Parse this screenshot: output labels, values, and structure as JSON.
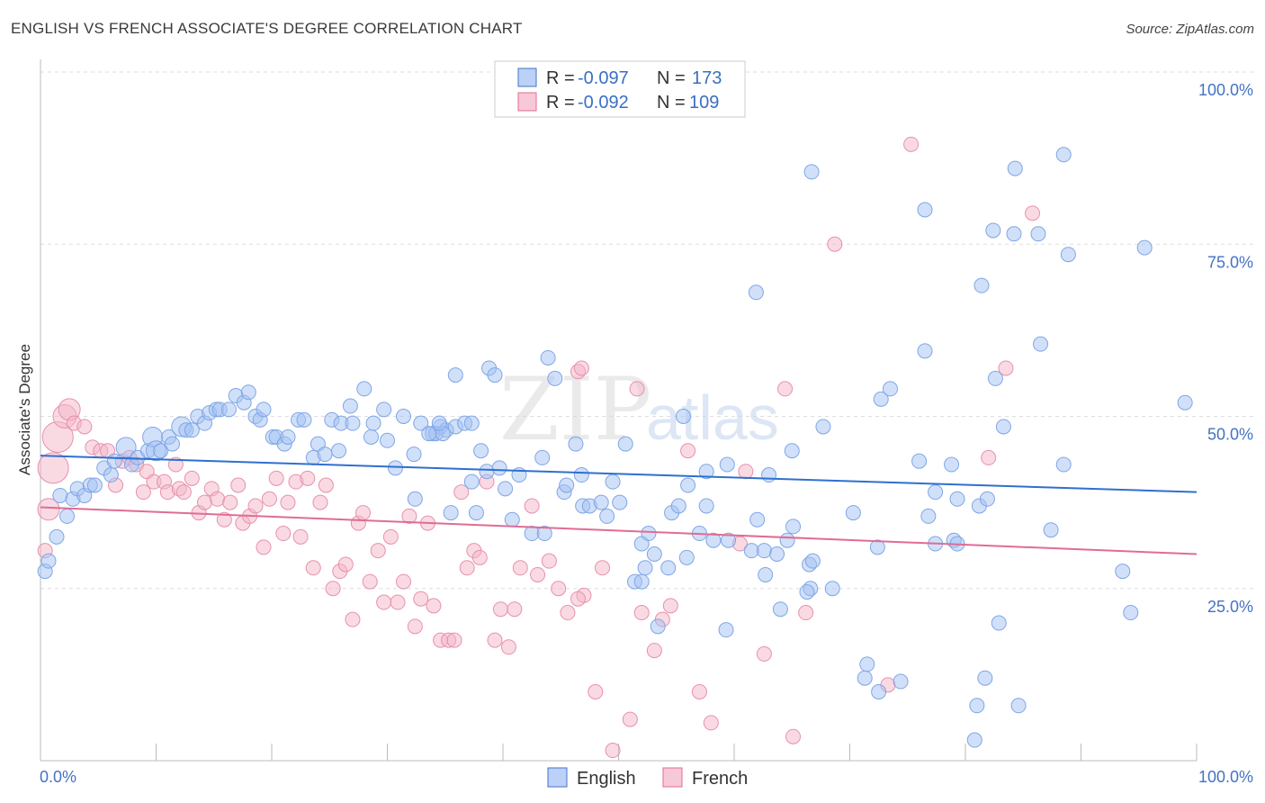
{
  "header": {
    "title": "ENGLISH VS FRENCH ASSOCIATE'S DEGREE CORRELATION CHART",
    "source": "Source: ZipAtlas.com"
  },
  "watermark": {
    "zip": "ZIP",
    "atlas": "atlas"
  },
  "legend_top": {
    "rows": [
      {
        "r_label": "R = ",
        "r_value": "-0.097",
        "n_label": "N = ",
        "n_value": "173"
      },
      {
        "r_label": "R = ",
        "r_value": "-0.092",
        "n_label": "N = ",
        "n_value": "109"
      }
    ]
  },
  "chart_data": {
    "type": "scatter",
    "title": "ENGLISH VS FRENCH ASSOCIATE'S DEGREE CORRELATION CHART",
    "xlabel": "",
    "ylabel": "Associate's Degree",
    "xlim": [
      0,
      100
    ],
    "ylim": [
      0,
      100
    ],
    "x_tick_labels": [
      "0.0%",
      "100.0%"
    ],
    "y_tick_labels": [
      "100.0%",
      "75.0%",
      "50.0%",
      "25.0%"
    ],
    "y_ticks": [
      100,
      75,
      50,
      25
    ],
    "grid": true,
    "legend_position": "bottom",
    "colors": {
      "english": "#a4c2f4",
      "english_line": "#2f6fd0",
      "french": "#f4b6c8",
      "french_line": "#e06c94"
    },
    "series": [
      {
        "name": "English",
        "r": -0.097,
        "n": 173,
        "trend": {
          "x": [
            0,
            100
          ],
          "y": [
            44.3,
            39.0
          ]
        },
        "points": [
          [
            0.4,
            27.5
          ],
          [
            0.7,
            29
          ],
          [
            1.4,
            32.5
          ],
          [
            1.7,
            38.5
          ],
          [
            2.3,
            35.5
          ],
          [
            2.8,
            38
          ],
          [
            3.2,
            39.5
          ],
          [
            3.8,
            38.5
          ],
          [
            4.3,
            40
          ],
          [
            4.7,
            40
          ],
          [
            5.5,
            42.5
          ],
          [
            6.1,
            41.5
          ],
          [
            6.4,
            43.5
          ],
          [
            7.4,
            45.5
          ],
          [
            7.9,
            43
          ],
          [
            8.4,
            44
          ],
          [
            9.3,
            45
          ],
          [
            9.7,
            47
          ],
          [
            10,
            45
          ],
          [
            10.4,
            45
          ],
          [
            11.1,
            47
          ],
          [
            11.4,
            46
          ],
          [
            12.2,
            48.5
          ],
          [
            12.6,
            48
          ],
          [
            13.1,
            48
          ],
          [
            13.6,
            50
          ],
          [
            14.2,
            49
          ],
          [
            14.6,
            50.5
          ],
          [
            15.2,
            51
          ],
          [
            15.5,
            51
          ],
          [
            16.3,
            51
          ],
          [
            16.9,
            53
          ],
          [
            17.6,
            52
          ],
          [
            18,
            53.5
          ],
          [
            18.6,
            50
          ],
          [
            19,
            49.5
          ],
          [
            19.3,
            51
          ],
          [
            20.1,
            47
          ],
          [
            20.4,
            47
          ],
          [
            21.1,
            46
          ],
          [
            21.4,
            47
          ],
          [
            22.3,
            49.5
          ],
          [
            22.8,
            49.5
          ],
          [
            23.6,
            44
          ],
          [
            24,
            46
          ],
          [
            24.6,
            44.5
          ],
          [
            25.2,
            49.5
          ],
          [
            25.8,
            45
          ],
          [
            26,
            49
          ],
          [
            27,
            49
          ],
          [
            28,
            54
          ],
          [
            26.8,
            51.5
          ],
          [
            28.6,
            47
          ],
          [
            29.7,
            51
          ],
          [
            28.8,
            49
          ],
          [
            30,
            46.5
          ],
          [
            30.7,
            42.5
          ],
          [
            31.4,
            50
          ],
          [
            32.3,
            44.5
          ],
          [
            32.4,
            38
          ],
          [
            32.9,
            49
          ],
          [
            33.9,
            47.5
          ],
          [
            34.6,
            48.5
          ],
          [
            35.1,
            48
          ],
          [
            35.5,
            36
          ],
          [
            34.2,
            47.5
          ],
          [
            35.9,
            48.5
          ],
          [
            36.7,
            49
          ],
          [
            37.3,
            49
          ],
          [
            34.8,
            47.5
          ],
          [
            33.6,
            47.5
          ],
          [
            34.5,
            49
          ],
          [
            35.9,
            56
          ],
          [
            37.3,
            40.5
          ],
          [
            37.7,
            36
          ],
          [
            38.1,
            45
          ],
          [
            38.8,
            57
          ],
          [
            39.3,
            56
          ],
          [
            38.6,
            42
          ],
          [
            39.7,
            42.5
          ],
          [
            40.2,
            39.5
          ],
          [
            40.8,
            35
          ],
          [
            41.4,
            41.5
          ],
          [
            42.5,
            33
          ],
          [
            43.4,
            44
          ],
          [
            43.6,
            33
          ],
          [
            43.9,
            58.5
          ],
          [
            44.5,
            55.5
          ],
          [
            45.3,
            39
          ],
          [
            45.5,
            40
          ],
          [
            46.3,
            46
          ],
          [
            46.9,
            37
          ],
          [
            47.5,
            37
          ],
          [
            46.8,
            41.5
          ],
          [
            48.5,
            37.5
          ],
          [
            49,
            35.5
          ],
          [
            49.5,
            40.5
          ],
          [
            50.1,
            37.5
          ],
          [
            50.6,
            46
          ],
          [
            51.4,
            26
          ],
          [
            52,
            26
          ],
          [
            52.3,
            28
          ],
          [
            52,
            31.5
          ],
          [
            52.6,
            33
          ],
          [
            53.1,
            30
          ],
          [
            53.4,
            19.5
          ],
          [
            54.3,
            28
          ],
          [
            54.6,
            36
          ],
          [
            55.2,
            37
          ],
          [
            55.9,
            29.5
          ],
          [
            56,
            40
          ],
          [
            55.6,
            50
          ],
          [
            57,
            33
          ],
          [
            57.6,
            37
          ],
          [
            58.2,
            32
          ],
          [
            57.6,
            42
          ],
          [
            59.3,
            19
          ],
          [
            59.5,
            32
          ],
          [
            59.4,
            43
          ],
          [
            61.5,
            30.5
          ],
          [
            62,
            35
          ],
          [
            62.6,
            30.5
          ],
          [
            62.7,
            27
          ],
          [
            63,
            41.5
          ],
          [
            63.7,
            30
          ],
          [
            64,
            22
          ],
          [
            64.6,
            32
          ],
          [
            65.1,
            34
          ],
          [
            66.5,
            28.5
          ],
          [
            66.6,
            25
          ],
          [
            66.8,
            29
          ],
          [
            65,
            45
          ],
          [
            67.7,
            48.5
          ],
          [
            66.3,
            24.5
          ],
          [
            68.5,
            25
          ],
          [
            70.3,
            36
          ],
          [
            71.3,
            12
          ],
          [
            71.5,
            14
          ],
          [
            72.4,
            31
          ],
          [
            72.5,
            10
          ],
          [
            72.7,
            52.5
          ],
          [
            74.4,
            11.5
          ],
          [
            73.5,
            54
          ],
          [
            76,
            43.5
          ],
          [
            76.5,
            59.5
          ],
          [
            76.8,
            35.5
          ],
          [
            77.4,
            31.5
          ],
          [
            76.5,
            80
          ],
          [
            77.4,
            39
          ],
          [
            79.3,
            38
          ],
          [
            79,
            32
          ],
          [
            79.3,
            31.5
          ],
          [
            78.8,
            43
          ],
          [
            81.2,
            37
          ],
          [
            81.4,
            69
          ],
          [
            81.9,
            38
          ],
          [
            81,
            8
          ],
          [
            81.7,
            12
          ],
          [
            80.8,
            3
          ],
          [
            82.6,
            55.5
          ],
          [
            83.3,
            48.5
          ],
          [
            82.4,
            77
          ],
          [
            84.3,
            86
          ],
          [
            84.6,
            8
          ],
          [
            84.2,
            76.5
          ],
          [
            82.9,
            20
          ],
          [
            86.3,
            76.5
          ],
          [
            86.5,
            60.5
          ],
          [
            88.5,
            43
          ],
          [
            88.5,
            88
          ],
          [
            87.4,
            33.5
          ],
          [
            88.9,
            73.5
          ],
          [
            94.3,
            21.5
          ],
          [
            93.6,
            27.5
          ],
          [
            95.5,
            74.5
          ],
          [
            99,
            52
          ],
          [
            66.7,
            85.5
          ],
          [
            61.9,
            68
          ]
        ]
      },
      {
        "name": "French",
        "r": -0.092,
        "n": 109,
        "trend": {
          "x": [
            0,
            100
          ],
          "y": [
            36.8,
            30.0
          ]
        },
        "points": [
          [
            0.4,
            30.5
          ],
          [
            0.7,
            36.5
          ],
          [
            1.1,
            42.5
          ],
          [
            1.5,
            47
          ],
          [
            2.1,
            50
          ],
          [
            2.5,
            51
          ],
          [
            2.9,
            49
          ],
          [
            3.8,
            48.5
          ],
          [
            4.5,
            45.5
          ],
          [
            5.2,
            45
          ],
          [
            5.8,
            45
          ],
          [
            6.5,
            40
          ],
          [
            7.1,
            43.5
          ],
          [
            7.7,
            44
          ],
          [
            8.3,
            43
          ],
          [
            8.9,
            39
          ],
          [
            9.2,
            42
          ],
          [
            9.8,
            40.5
          ],
          [
            10.7,
            40.5
          ],
          [
            11,
            39
          ],
          [
            11.7,
            43
          ],
          [
            12,
            39.5
          ],
          [
            12.4,
            39
          ],
          [
            13.1,
            41
          ],
          [
            13.7,
            36
          ],
          [
            14.2,
            37.5
          ],
          [
            14.8,
            39.5
          ],
          [
            15.3,
            38
          ],
          [
            15.9,
            35
          ],
          [
            16.4,
            37.5
          ],
          [
            17.1,
            40
          ],
          [
            17.5,
            34.5
          ],
          [
            18.1,
            35.5
          ],
          [
            18.6,
            37
          ],
          [
            19.3,
            31
          ],
          [
            19.8,
            38
          ],
          [
            20.4,
            41
          ],
          [
            21,
            33
          ],
          [
            21.4,
            37.5
          ],
          [
            22.1,
            40.5
          ],
          [
            22.5,
            32.5
          ],
          [
            23.1,
            41
          ],
          [
            23.6,
            28
          ],
          [
            24.2,
            37.5
          ],
          [
            24.7,
            40
          ],
          [
            25.3,
            25
          ],
          [
            25.9,
            27.5
          ],
          [
            26.4,
            28.5
          ],
          [
            27,
            20.5
          ],
          [
            27.5,
            34.5
          ],
          [
            27.9,
            36
          ],
          [
            28.5,
            26
          ],
          [
            29.2,
            30.5
          ],
          [
            29.7,
            23
          ],
          [
            30.3,
            32.5
          ],
          [
            30.9,
            23
          ],
          [
            31.4,
            26
          ],
          [
            31.9,
            35.5
          ],
          [
            32.4,
            19.5
          ],
          [
            32.9,
            23.5
          ],
          [
            33.5,
            34.5
          ],
          [
            34,
            22.5
          ],
          [
            34.6,
            17.5
          ],
          [
            35.3,
            17.5
          ],
          [
            35.8,
            17.5
          ],
          [
            36.4,
            39
          ],
          [
            36.9,
            28
          ],
          [
            37.5,
            30.5
          ],
          [
            38,
            29.5
          ],
          [
            38.6,
            40.5
          ],
          [
            39.3,
            17.5
          ],
          [
            39.8,
            22
          ],
          [
            40.5,
            16.5
          ],
          [
            41,
            22
          ],
          [
            41.5,
            28
          ],
          [
            42.5,
            37
          ],
          [
            43,
            27
          ],
          [
            44,
            29
          ],
          [
            44.8,
            25
          ],
          [
            45.6,
            21.5
          ],
          [
            46.5,
            56.5
          ],
          [
            46.8,
            57
          ],
          [
            47,
            24
          ],
          [
            46.5,
            23.5
          ],
          [
            48,
            10
          ],
          [
            48.6,
            28
          ],
          [
            49.5,
            1.5
          ],
          [
            51,
            6
          ],
          [
            51.6,
            54
          ],
          [
            52,
            21.5
          ],
          [
            53.1,
            16
          ],
          [
            53.8,
            20.5
          ],
          [
            54.5,
            22.5
          ],
          [
            56,
            45
          ],
          [
            57,
            10
          ],
          [
            58,
            5.5
          ],
          [
            60.5,
            31.5
          ],
          [
            61,
            42
          ],
          [
            62.6,
            15.5
          ],
          [
            64.4,
            54
          ],
          [
            65.1,
            3.5
          ],
          [
            66.2,
            21.5
          ],
          [
            68.7,
            75
          ],
          [
            75.3,
            89.5
          ],
          [
            73.3,
            11
          ],
          [
            82,
            44
          ],
          [
            83.5,
            57
          ],
          [
            85.8,
            79.5
          ]
        ]
      }
    ]
  },
  "legend_bottom": {
    "items": [
      {
        "label": "English",
        "color": "#a4c2f4"
      },
      {
        "label": "French",
        "color": "#f4b6c8"
      }
    ]
  }
}
